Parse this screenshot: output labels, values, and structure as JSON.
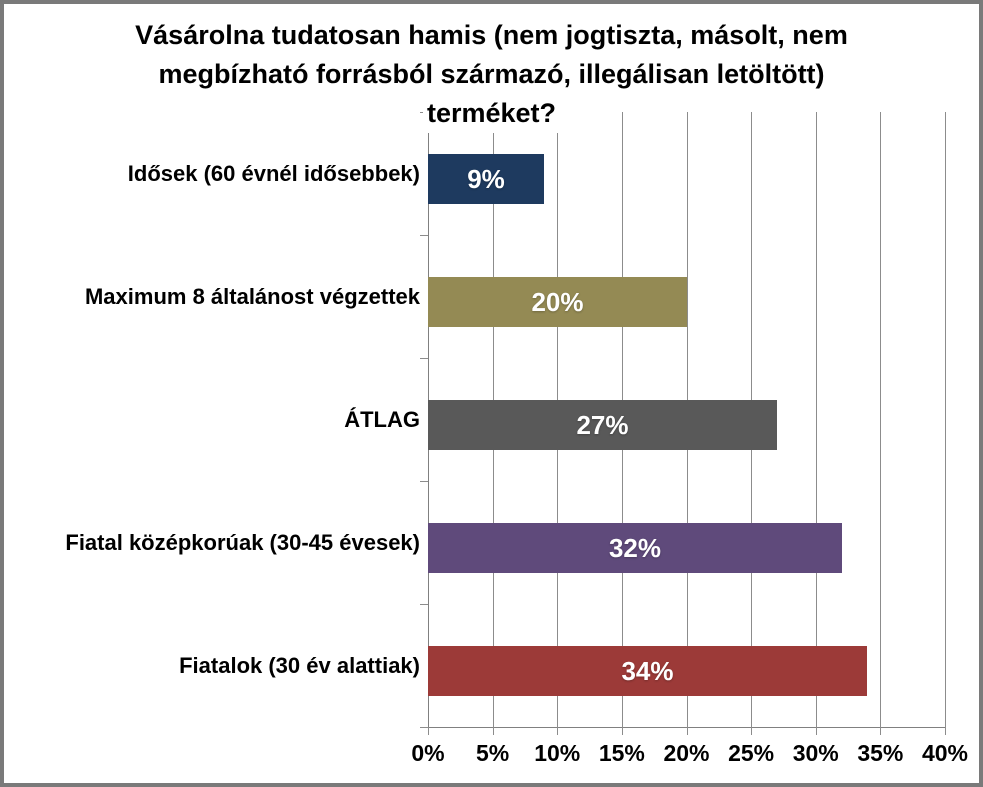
{
  "chart_data": {
    "type": "bar",
    "orientation": "horizontal",
    "title": "Vásárolna tudatosan hamis (nem jogtiszta, másolt, nem megbízható forrásból származó, illegálisan letöltött) terméket?",
    "title_lines": [
      "Vásárolna tudatosan hamis (nem jogtiszta, másolt, nem",
      "megbízható forrásból származó, illegálisan letöltött)",
      "terméket?"
    ],
    "categories": [
      "Idősek (60 évnél idősebbek)",
      "Maximum 8 általánost végzettek",
      "ÁTLAG",
      "Fiatal középkorúak (30-45 évesek)",
      "Fiatalok (30 év alattiak)"
    ],
    "values": [
      9,
      20,
      27,
      32,
      34
    ],
    "value_labels": [
      "9%",
      "20%",
      "27%",
      "32%",
      "34%"
    ],
    "bar_colors": [
      "#1e3a5f",
      "#948a54",
      "#595959",
      "#5f4a7b",
      "#9c3a38"
    ],
    "x_tick_values": [
      0,
      5,
      10,
      15,
      20,
      25,
      30,
      35,
      40
    ],
    "x_tick_labels": [
      "0%",
      "5%",
      "10%",
      "15%",
      "20%",
      "25%",
      "30%",
      "35%",
      "40%"
    ],
    "xlim": [
      0,
      40
    ],
    "xlabel": "",
    "ylabel": "",
    "grid": "vertical",
    "legend": "none",
    "gridline_color": "#8c8c8c",
    "axis_color": "#808080",
    "frame_border_color": "#7a7a7a",
    "background_color": "#ffffff",
    "value_label_color": "#ffffff"
  }
}
